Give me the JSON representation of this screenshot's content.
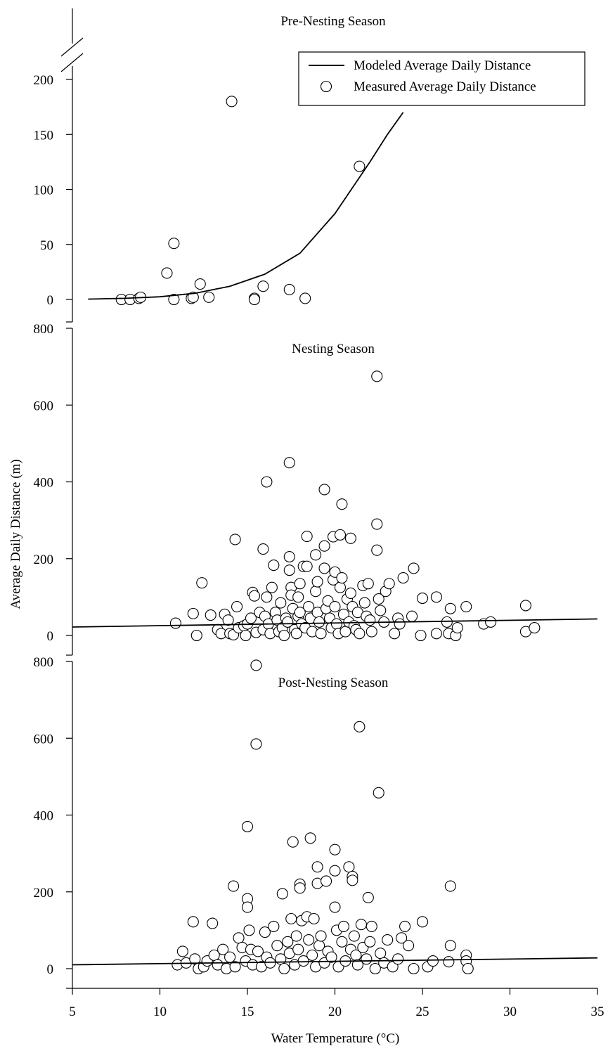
{
  "chart_data": {
    "type": "scatter",
    "xlabel": "Water Temperature (°C)",
    "ylabel": "Average Daily Distance (m)",
    "xlim": [
      5,
      35
    ],
    "xticks": [
      5,
      10,
      15,
      20,
      25,
      30,
      35
    ],
    "legend": {
      "placement": "top-right",
      "entries": [
        "Modeled Average Daily Distance",
        "Measured Average Daily Distance"
      ]
    },
    "panels": [
      {
        "title": "Pre-Nesting Season",
        "ylim": [
          0,
          200
        ],
        "yticks": [
          0,
          50,
          100,
          150,
          200
        ],
        "axis_break": true,
        "points": [
          [
            7.8,
            0
          ],
          [
            8.3,
            0
          ],
          [
            8.8,
            1
          ],
          [
            8.9,
            2
          ],
          [
            10.4,
            24
          ],
          [
            10.8,
            51
          ],
          [
            10.8,
            0
          ],
          [
            11.8,
            1
          ],
          [
            11.9,
            2
          ],
          [
            12.3,
            14
          ],
          [
            12.8,
            2
          ],
          [
            14.1,
            180
          ],
          [
            15.4,
            1
          ],
          [
            15.4,
            0
          ],
          [
            15.9,
            12
          ],
          [
            17.4,
            9
          ],
          [
            18.3,
            1
          ],
          [
            21.4,
            121
          ]
        ],
        "model_curve": [
          [
            5.9,
            0.3
          ],
          [
            8,
            1
          ],
          [
            10,
            2.4
          ],
          [
            12,
            5.6
          ],
          [
            14,
            12
          ],
          [
            16,
            23
          ],
          [
            18,
            42
          ],
          [
            20,
            78
          ],
          [
            22,
            125
          ],
          [
            23,
            150
          ],
          [
            23.9,
            170
          ]
        ]
      },
      {
        "title": "Nesting Season",
        "ylim": [
          0,
          800
        ],
        "yticks": [
          0,
          200,
          400,
          600,
          800
        ],
        "points": [
          [
            10.9,
            32
          ],
          [
            11.9,
            57
          ],
          [
            12.1,
            0
          ],
          [
            12.4,
            137
          ],
          [
            12.9,
            53
          ],
          [
            13.3,
            15
          ],
          [
            13.5,
            5
          ],
          [
            13.7,
            55
          ],
          [
            13.9,
            40
          ],
          [
            14.0,
            5
          ],
          [
            14.2,
            2
          ],
          [
            14.3,
            250
          ],
          [
            14.4,
            75
          ],
          [
            14.5,
            20
          ],
          [
            14.8,
            25
          ],
          [
            14.9,
            0
          ],
          [
            15.0,
            30
          ],
          [
            15.2,
            45
          ],
          [
            15.3,
            112
          ],
          [
            15.4,
            103
          ],
          [
            15.5,
            8
          ],
          [
            15.7,
            60
          ],
          [
            15.9,
            225
          ],
          [
            15.9,
            15
          ],
          [
            16.0,
            50
          ],
          [
            16.1,
            400
          ],
          [
            16.1,
            100
          ],
          [
            16.2,
            30
          ],
          [
            16.3,
            5
          ],
          [
            16.4,
            125
          ],
          [
            16.5,
            183
          ],
          [
            16.6,
            60
          ],
          [
            16.7,
            40
          ],
          [
            16.8,
            10
          ],
          [
            16.9,
            85
          ],
          [
            17.0,
            20
          ],
          [
            17.1,
            0
          ],
          [
            17.2,
            45
          ],
          [
            17.3,
            35
          ],
          [
            17.4,
            450
          ],
          [
            17.4,
            205
          ],
          [
            17.4,
            170
          ],
          [
            17.5,
            125
          ],
          [
            17.5,
            105
          ],
          [
            17.6,
            70
          ],
          [
            17.7,
            15
          ],
          [
            17.8,
            5
          ],
          [
            17.9,
            100
          ],
          [
            17.9,
            50
          ],
          [
            18.0,
            135
          ],
          [
            18.0,
            60
          ],
          [
            18.1,
            30
          ],
          [
            18.2,
            180
          ],
          [
            18.3,
            20
          ],
          [
            18.4,
            258
          ],
          [
            18.4,
            180
          ],
          [
            18.5,
            75
          ],
          [
            18.6,
            45
          ],
          [
            18.7,
            10
          ],
          [
            18.9,
            210
          ],
          [
            18.9,
            115
          ],
          [
            19.0,
            140
          ],
          [
            19.0,
            60
          ],
          [
            19.1,
            35
          ],
          [
            19.2,
            5
          ],
          [
            19.4,
            380
          ],
          [
            19.4,
            233
          ],
          [
            19.4,
            175
          ],
          [
            19.5,
            70
          ],
          [
            19.6,
            90
          ],
          [
            19.7,
            45
          ],
          [
            19.8,
            20
          ],
          [
            19.9,
            257
          ],
          [
            19.9,
            145
          ],
          [
            20.0,
            165
          ],
          [
            20.0,
            75
          ],
          [
            20.1,
            30
          ],
          [
            20.2,
            5
          ],
          [
            20.3,
            262
          ],
          [
            20.3,
            125
          ],
          [
            20.4,
            342
          ],
          [
            20.4,
            150
          ],
          [
            20.5,
            55
          ],
          [
            20.6,
            10
          ],
          [
            20.7,
            95
          ],
          [
            20.8,
            35
          ],
          [
            20.9,
            253
          ],
          [
            20.9,
            110
          ],
          [
            21.0,
            75
          ],
          [
            21.1,
            25
          ],
          [
            21.2,
            15
          ],
          [
            21.3,
            60
          ],
          [
            21.4,
            5
          ],
          [
            21.6,
            130
          ],
          [
            21.7,
            85
          ],
          [
            21.8,
            50
          ],
          [
            21.9,
            135
          ],
          [
            22.0,
            40
          ],
          [
            22.1,
            10
          ],
          [
            22.4,
            675
          ],
          [
            22.4,
            290
          ],
          [
            22.4,
            222
          ],
          [
            22.5,
            95
          ],
          [
            22.6,
            65
          ],
          [
            22.8,
            35
          ],
          [
            22.9,
            115
          ],
          [
            23.1,
            135
          ],
          [
            23.4,
            5
          ],
          [
            23.6,
            45
          ],
          [
            23.7,
            30
          ],
          [
            23.9,
            150
          ],
          [
            24.4,
            50
          ],
          [
            24.5,
            175
          ],
          [
            24.9,
            0
          ],
          [
            25.0,
            97
          ],
          [
            25.8,
            5
          ],
          [
            25.8,
            100
          ],
          [
            26.4,
            35
          ],
          [
            26.5,
            5
          ],
          [
            26.6,
            70
          ],
          [
            26.9,
            0
          ],
          [
            27.0,
            20
          ],
          [
            27.5,
            75
          ],
          [
            28.5,
            30
          ],
          [
            28.9,
            35
          ],
          [
            30.9,
            78
          ],
          [
            30.9,
            10
          ],
          [
            31.4,
            20
          ]
        ],
        "model_curve": [
          [
            5,
            22
          ],
          [
            35,
            43
          ]
        ]
      },
      {
        "title": "Post-Nesting Season",
        "ylim": [
          0,
          800
        ],
        "yticks": [
          0,
          200,
          400,
          600,
          800
        ],
        "points": [
          [
            11.0,
            10
          ],
          [
            11.3,
            45
          ],
          [
            11.5,
            15
          ],
          [
            11.9,
            122
          ],
          [
            12.0,
            25
          ],
          [
            12.2,
            0
          ],
          [
            12.5,
            5
          ],
          [
            12.7,
            20
          ],
          [
            13.0,
            118
          ],
          [
            13.1,
            35
          ],
          [
            13.3,
            10
          ],
          [
            13.6,
            50
          ],
          [
            13.8,
            0
          ],
          [
            14.0,
            30
          ],
          [
            14.2,
            215
          ],
          [
            14.3,
            5
          ],
          [
            14.5,
            80
          ],
          [
            14.7,
            55
          ],
          [
            14.9,
            20
          ],
          [
            15.0,
            370
          ],
          [
            15.0,
            182
          ],
          [
            15.0,
            160
          ],
          [
            15.1,
            100
          ],
          [
            15.2,
            50
          ],
          [
            15.3,
            10
          ],
          [
            15.5,
            790
          ],
          [
            15.5,
            585
          ],
          [
            15.6,
            45
          ],
          [
            15.8,
            5
          ],
          [
            16.0,
            95
          ],
          [
            16.1,
            30
          ],
          [
            16.3,
            15
          ],
          [
            16.5,
            110
          ],
          [
            16.7,
            60
          ],
          [
            16.9,
            25
          ],
          [
            17.0,
            195
          ],
          [
            17.1,
            0
          ],
          [
            17.3,
            70
          ],
          [
            17.4,
            40
          ],
          [
            17.5,
            130
          ],
          [
            17.6,
            330
          ],
          [
            17.7,
            10
          ],
          [
            17.8,
            85
          ],
          [
            17.9,
            50
          ],
          [
            18.0,
            220
          ],
          [
            18.0,
            210
          ],
          [
            18.1,
            125
          ],
          [
            18.2,
            20
          ],
          [
            18.4,
            135
          ],
          [
            18.5,
            75
          ],
          [
            18.6,
            340
          ],
          [
            18.7,
            35
          ],
          [
            18.8,
            130
          ],
          [
            18.9,
            5
          ],
          [
            19.0,
            265
          ],
          [
            19.0,
            222
          ],
          [
            19.1,
            60
          ],
          [
            19.2,
            85
          ],
          [
            19.4,
            15
          ],
          [
            19.5,
            228
          ],
          [
            19.6,
            45
          ],
          [
            19.8,
            30
          ],
          [
            20.0,
            310
          ],
          [
            20.0,
            255
          ],
          [
            20.0,
            160
          ],
          [
            20.1,
            100
          ],
          [
            20.2,
            5
          ],
          [
            20.4,
            70
          ],
          [
            20.5,
            110
          ],
          [
            20.6,
            20
          ],
          [
            20.8,
            265
          ],
          [
            20.9,
            50
          ],
          [
            21.0,
            240
          ],
          [
            21.0,
            230
          ],
          [
            21.1,
            85
          ],
          [
            21.2,
            35
          ],
          [
            21.3,
            10
          ],
          [
            21.4,
            630
          ],
          [
            21.5,
            115
          ],
          [
            21.6,
            55
          ],
          [
            21.8,
            25
          ],
          [
            21.9,
            185
          ],
          [
            22.0,
            70
          ],
          [
            22.1,
            110
          ],
          [
            22.3,
            0
          ],
          [
            22.5,
            458
          ],
          [
            22.6,
            40
          ],
          [
            22.8,
            15
          ],
          [
            23.0,
            75
          ],
          [
            23.3,
            5
          ],
          [
            23.6,
            25
          ],
          [
            23.8,
            80
          ],
          [
            24.0,
            110
          ],
          [
            24.2,
            60
          ],
          [
            24.5,
            0
          ],
          [
            25.0,
            122
          ],
          [
            25.3,
            5
          ],
          [
            25.6,
            20
          ],
          [
            26.5,
            18
          ],
          [
            26.6,
            215
          ],
          [
            26.6,
            60
          ],
          [
            27.5,
            35
          ],
          [
            27.5,
            20
          ],
          [
            27.6,
            0
          ]
        ],
        "model_curve": [
          [
            5,
            10
          ],
          [
            35,
            28
          ]
        ]
      }
    ]
  }
}
